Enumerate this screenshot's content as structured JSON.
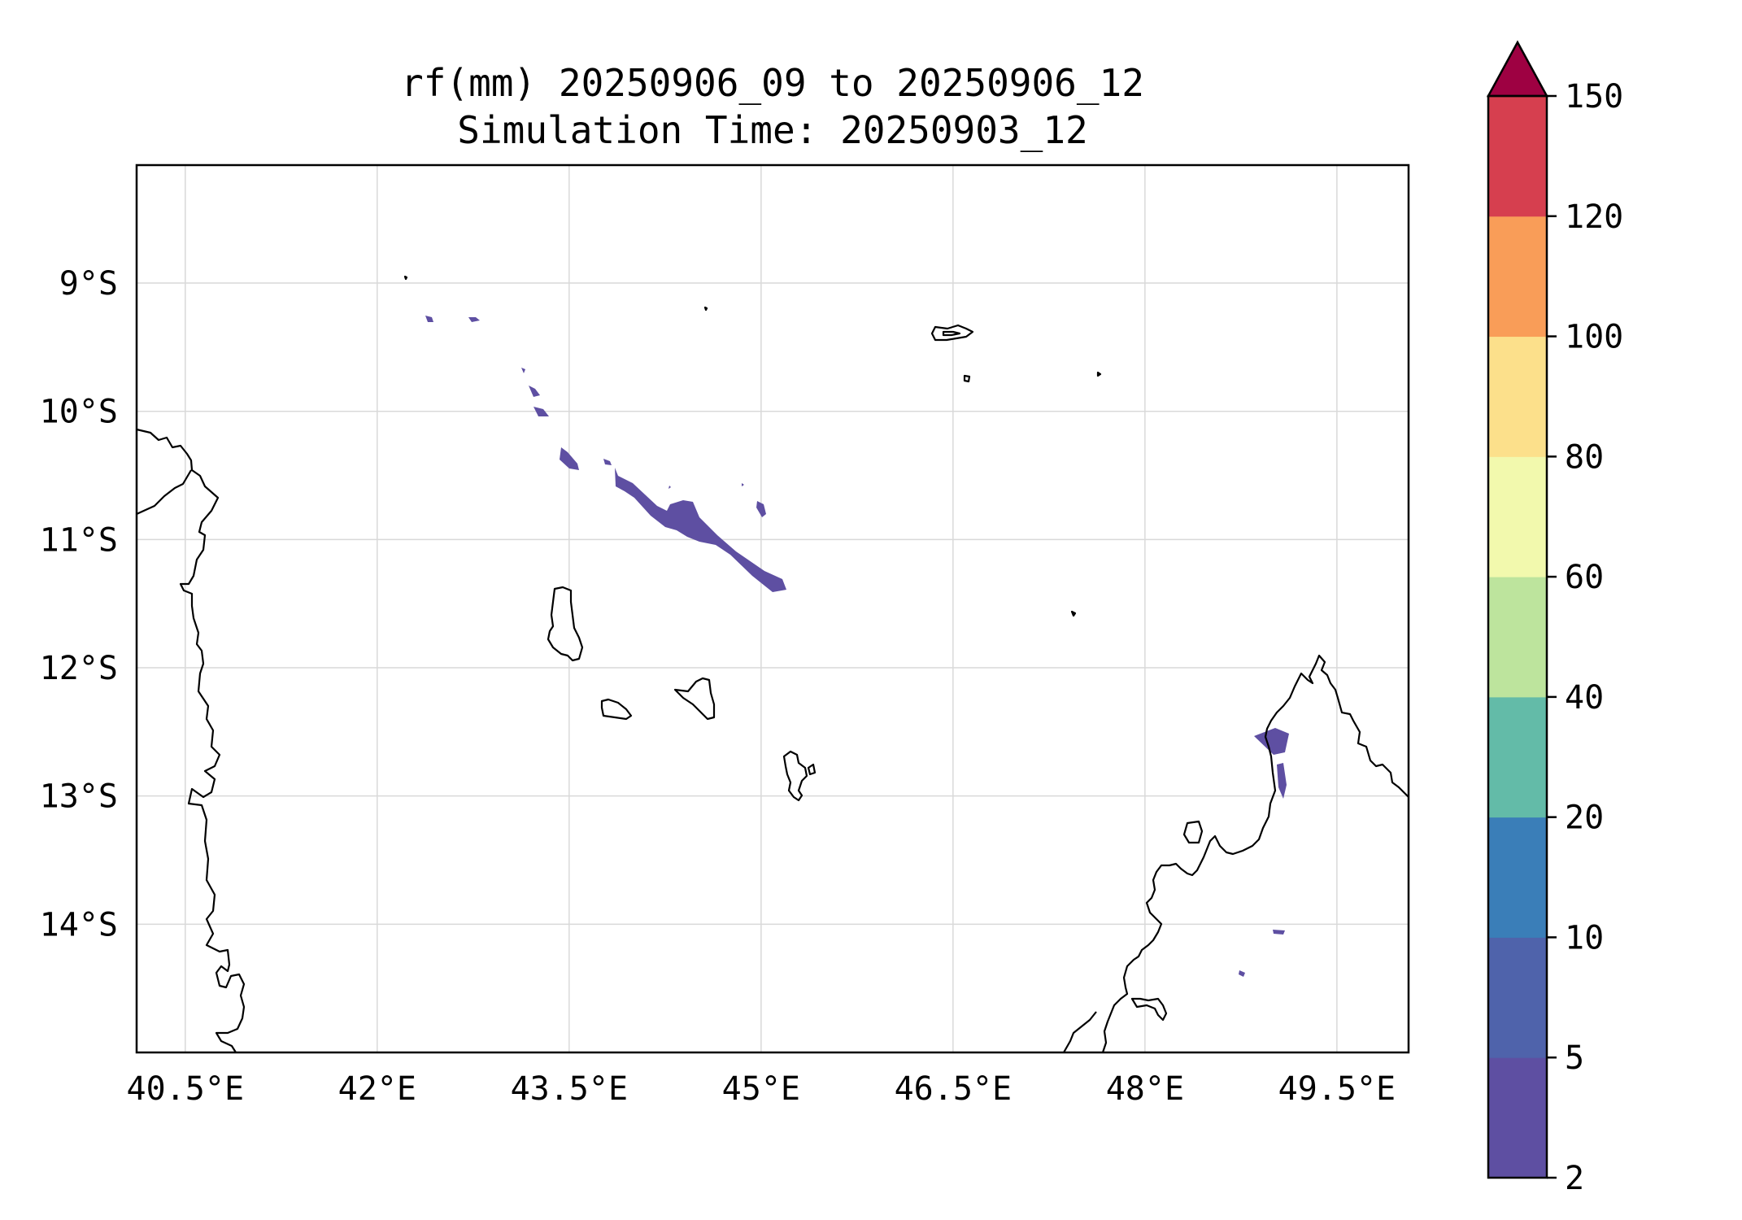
{
  "figure": {
    "title_line1": "rf(mm) 20250906_09 to 20250906_12",
    "title_line2": "Simulation Time: 20250903_12"
  },
  "map": {
    "lon_range": [
      40.12,
      50.06
    ],
    "lat_range": [
      -15.0,
      -8.08
    ],
    "x_ticks": [
      {
        "value": 40.5,
        "label": "40.5°E"
      },
      {
        "value": 42.0,
        "label": "42°E"
      },
      {
        "value": 43.5,
        "label": "43.5°E"
      },
      {
        "value": 45.0,
        "label": "45°E"
      },
      {
        "value": 46.5,
        "label": "46.5°E"
      },
      {
        "value": 48.0,
        "label": "48°E"
      },
      {
        "value": 49.5,
        "label": "49.5°E"
      }
    ],
    "y_ticks": [
      {
        "value": -9,
        "label": "9°S"
      },
      {
        "value": -10,
        "label": "10°S"
      },
      {
        "value": -11,
        "label": "11°S"
      },
      {
        "value": -12,
        "label": "12°S"
      },
      {
        "value": -13,
        "label": "13°S"
      },
      {
        "value": -14,
        "label": "14°S"
      }
    ],
    "grid": true,
    "rainfall_color": "#5e4fa2"
  },
  "colorbar": {
    "levels": [
      "2",
      "5",
      "10",
      "20",
      "40",
      "60",
      "80",
      "100",
      "120",
      "150"
    ],
    "colors": [
      "#5e4fa2",
      "#4f63ab",
      "#3a7eb8",
      "#63bba8",
      "#bde49d",
      "#f2f9ad",
      "#fce08b",
      "#f99d58",
      "#d63f4f"
    ],
    "extend_color": "#9e0142",
    "extend": "max"
  }
}
